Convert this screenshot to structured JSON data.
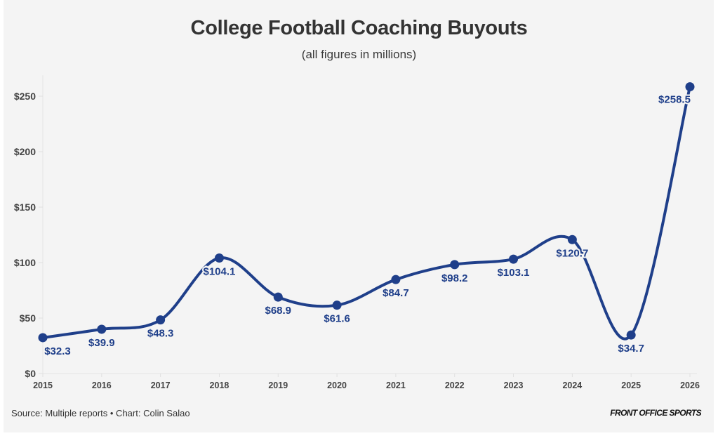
{
  "header": {
    "title": "College Football Coaching Buyouts",
    "subtitle": "(all figures in millions)"
  },
  "footer": {
    "source": "Source: Multiple reports • Chart: Colin Salao",
    "brand": "FRONT OFFICE SPORTS"
  },
  "colors": {
    "line": "#1f3f8a",
    "background": "#f4f4f4",
    "axis_text": "#444444"
  },
  "chart_data": {
    "type": "line",
    "title": "College Football Coaching Buyouts",
    "subtitle": "(all figures in millions)",
    "xlabel": "",
    "ylabel": "",
    "categories": [
      "2015",
      "2016",
      "2017",
      "2018",
      "2019",
      "2020",
      "2021",
      "2022",
      "2023",
      "2024",
      "2025",
      "2026"
    ],
    "series": [
      {
        "name": "Coaching buyouts",
        "values": [
          32.3,
          39.9,
          48.3,
          104.1,
          68.9,
          61.6,
          84.7,
          98.2,
          103.1,
          120.7,
          34.7,
          258.5
        ],
        "labels": [
          "$32.3",
          "$39.9",
          "$48.3",
          "$104.1",
          "$68.9",
          "$61.6",
          "$84.7",
          "$98.2",
          "$103.1",
          "$120.7",
          "$34.7",
          "$258.5"
        ]
      }
    ],
    "ylim": [
      0,
      260
    ],
    "yticks": [
      0,
      50,
      100,
      150,
      200,
      250
    ],
    "ytick_labels": [
      "$0",
      "$50",
      "$100",
      "$150",
      "$200",
      "$250"
    ],
    "grid": false,
    "smooth": true,
    "markers": true,
    "legend": "none"
  }
}
